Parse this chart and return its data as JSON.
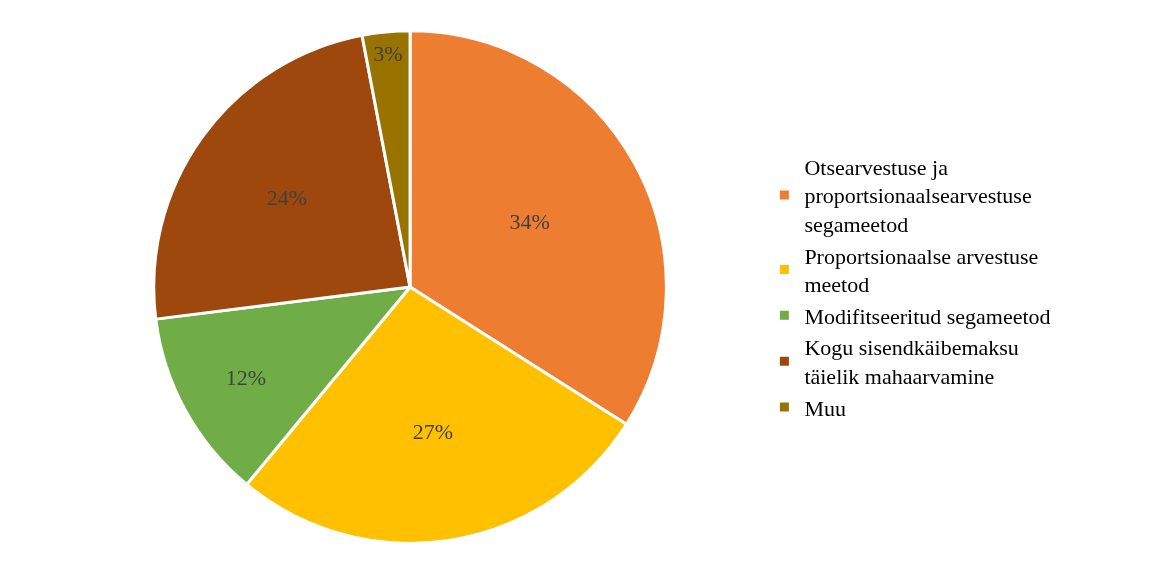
{
  "chart_data": {
    "type": "pie",
    "categories": [
      "Otsearvestuse ja proportsionaalsearvestuse segameetod",
      "Proportsionaalse arvestuse meetod",
      "Modifitseeritud segameetod",
      "Kogu sisendkäibemaksu täielik mahaarvamine",
      "Muu"
    ],
    "values": [
      34,
      27,
      12,
      24,
      3
    ],
    "value_labels": [
      "34%",
      "27%",
      "12%",
      "24%",
      "3%"
    ],
    "colors": [
      "#ed7d31",
      "#ffc000",
      "#70ad47",
      "#9e480e",
      "#997300"
    ],
    "legend": "right"
  }
}
